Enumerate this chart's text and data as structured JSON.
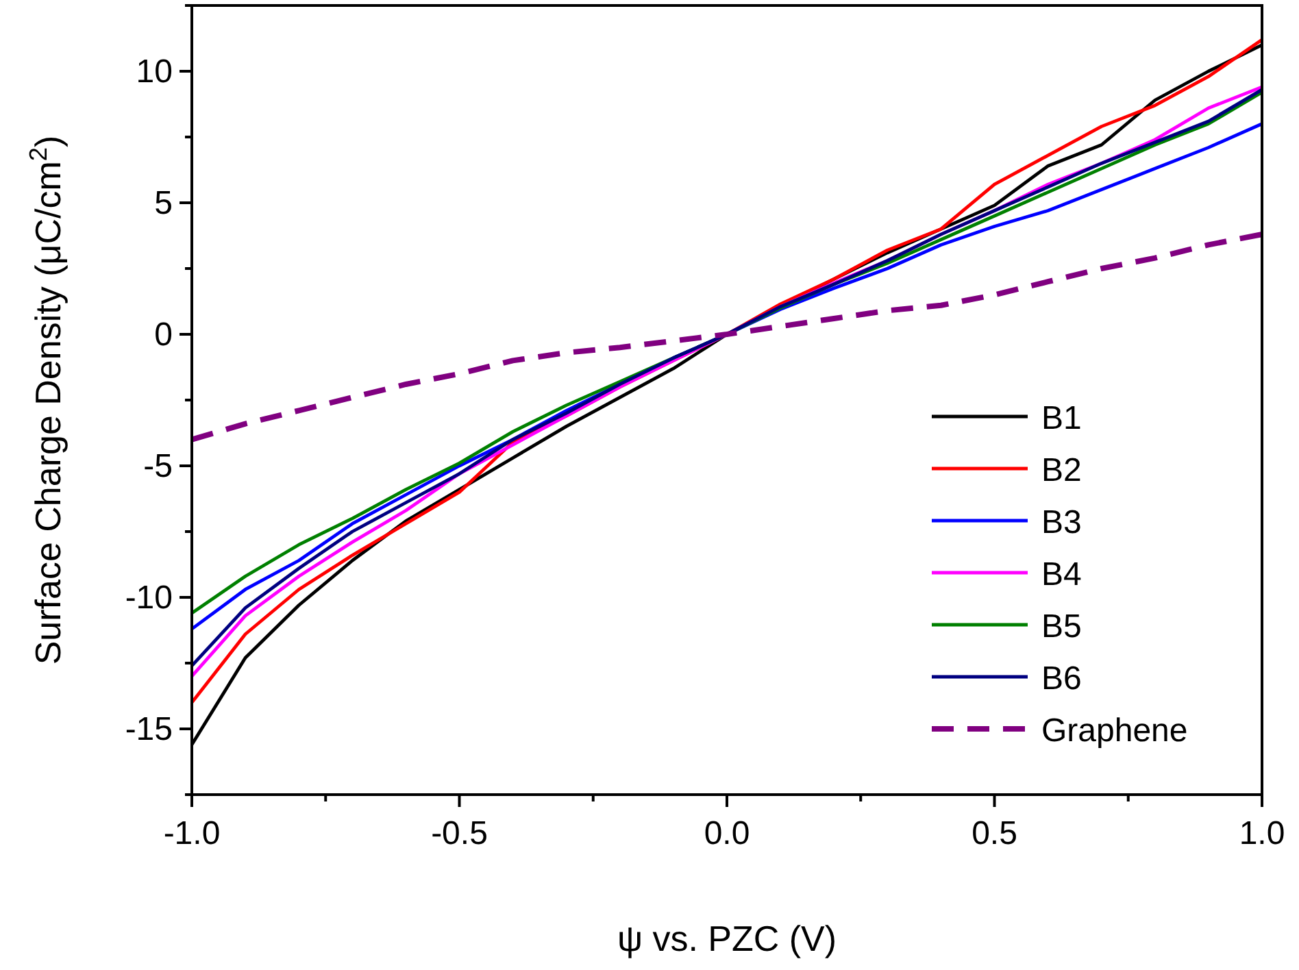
{
  "chart_data": {
    "type": "line",
    "xlabel": "ψ vs. PZC (V)",
    "ylabel": "Surface Charge Density (μC/cm$^{2}$)",
    "x": [
      -1,
      -0.9,
      -0.8,
      -0.7,
      -0.6,
      -0.5,
      -0.4,
      -0.3,
      -0.2,
      -0.1,
      0,
      0.1,
      0.2,
      0.3,
      0.4,
      0.5,
      0.6,
      0.7,
      0.8,
      0.9,
      1
    ],
    "xlim": [
      -1,
      1
    ],
    "xticks": [
      {
        "value": -1,
        "label": "-1.0"
      },
      {
        "value": -0.75,
        "label": null
      },
      {
        "value": -0.5,
        "label": "-0.5"
      },
      {
        "value": -0.25,
        "label": null
      },
      {
        "value": 0,
        "label": "0.0"
      },
      {
        "value": 0.25,
        "label": null
      },
      {
        "value": 0.5,
        "label": "0.5"
      },
      {
        "value": 0.75,
        "label": null
      },
      {
        "value": 1,
        "label": "1.0"
      }
    ],
    "ylim": [
      -17.5,
      12.5
    ],
    "yticks": [
      {
        "value": -17.5,
        "label": null
      },
      -15,
      {
        "value": -12.5,
        "label": null
      },
      -10,
      {
        "value": -7.5,
        "label": null
      },
      -5,
      {
        "value": -2.5,
        "label": null
      },
      0,
      {
        "value": 2.5,
        "label": null
      },
      5,
      {
        "value": 7.5,
        "label": null
      },
      10,
      {
        "value": 12.5,
        "label": null
      }
    ],
    "legend": "bottom right",
    "grid": false,
    "line_style": "solid",
    "series": [
      {
        "name": "B1",
        "color": "#000000",
        "values": [
          -15.6,
          -12.3,
          -10.3,
          -8.6,
          -7.1,
          -5.9,
          -4.7,
          -3.5,
          -2.4,
          -1.3,
          0,
          1.05,
          2.1,
          3.1,
          4.0,
          4.9,
          6.4,
          7.2,
          8.9,
          10.0,
          11.0
        ]
      },
      {
        "name": "B2",
        "color": "#ff0000",
        "values": [
          -14.0,
          -11.4,
          -9.7,
          -8.4,
          -7.2,
          -6.0,
          -4.1,
          -3.1,
          -2.0,
          -1.0,
          0,
          1.15,
          2.1,
          3.2,
          4.0,
          5.7,
          6.8,
          7.9,
          8.7,
          9.8,
          11.2
        ]
      },
      {
        "name": "B3",
        "color": "#0000ff",
        "values": [
          -11.2,
          -9.7,
          -8.6,
          -7.2,
          -6.1,
          -5.0,
          -4.0,
          -2.9,
          -1.9,
          -0.9,
          0,
          0.95,
          1.75,
          2.5,
          3.4,
          4.1,
          4.7,
          5.5,
          6.3,
          7.1,
          8.0
        ]
      },
      {
        "name": "B4",
        "color": "#ff00ff",
        "values": [
          -13.0,
          -10.7,
          -9.2,
          -7.9,
          -6.7,
          -5.3,
          -4.2,
          -3.1,
          -2.0,
          -1.0,
          0,
          1.05,
          1.95,
          2.8,
          3.8,
          4.7,
          5.7,
          6.5,
          7.4,
          8.6,
          9.4
        ]
      },
      {
        "name": "B5",
        "color": "#008000",
        "values": [
          -10.6,
          -9.2,
          -8.0,
          -7.0,
          -5.9,
          -4.9,
          -3.7,
          -2.7,
          -1.8,
          -0.9,
          0,
          1.0,
          1.9,
          2.7,
          3.6,
          4.5,
          5.4,
          6.3,
          7.2,
          8.0,
          9.2
        ]
      },
      {
        "name": "B6",
        "color": "#000080",
        "values": [
          -12.6,
          -10.4,
          -8.9,
          -7.5,
          -6.4,
          -5.3,
          -4.0,
          -3.0,
          -1.9,
          -0.9,
          0,
          1.05,
          1.9,
          2.8,
          3.8,
          4.7,
          5.6,
          6.5,
          7.3,
          8.1,
          9.3
        ]
      },
      {
        "name": "Graphene",
        "color": "#800080",
        "line_style": "dashed",
        "values": [
          -4.0,
          -3.4,
          -2.9,
          -2.4,
          -1.9,
          -1.5,
          -1.0,
          -0.7,
          -0.5,
          -0.25,
          0,
          0.3,
          0.6,
          0.9,
          1.1,
          1.5,
          2.0,
          2.5,
          2.9,
          3.4,
          3.8
        ]
      }
    ]
  }
}
